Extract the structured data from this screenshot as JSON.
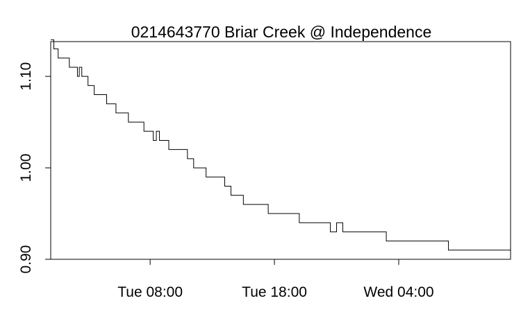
{
  "chart_data": {
    "type": "line",
    "title": "0214643770 Briar Creek @ Independence",
    "xlabel": "",
    "ylabel": "",
    "ylim": [
      0.9,
      1.138
    ],
    "grid": false,
    "legend": "none",
    "line_color": "#000000",
    "x_ticks": [
      "Tue 08:00",
      "Tue 18:00",
      "Wed 04:00"
    ],
    "y_ticks": [
      "0.90",
      "1.00",
      "1.10"
    ],
    "x_tick_hours": [
      8,
      18,
      28
    ],
    "x_range_hours": [
      0,
      37
    ],
    "series": [
      {
        "name": "",
        "x": [
          0,
          0.25,
          0.5,
          0.6,
          0.75,
          1,
          1.25,
          1.5,
          2,
          2.15,
          2.3,
          2.5,
          2.75,
          3,
          3.25,
          3.5,
          4,
          4.25,
          4.5,
          4.75,
          5,
          5.25,
          5.5,
          5.75,
          6,
          6.25,
          6.5,
          7,
          7.25,
          7.5,
          8,
          8.25,
          8.5,
          8.75,
          9,
          9.25,
          9.5,
          10,
          10.25,
          10.5,
          11,
          11.25,
          11.5,
          12,
          12.25,
          12.5,
          13,
          13.5,
          14,
          14.5,
          15,
          15.25,
          15.5,
          16,
          16.5,
          17,
          17.5,
          18,
          18.5,
          19,
          19.5,
          20,
          20.5,
          21,
          21.5,
          22,
          22.5,
          23,
          23.5,
          24,
          24.5,
          25,
          25.5,
          26,
          26.5,
          27,
          27.5,
          28,
          28.5,
          29,
          29.5,
          30,
          30.5,
          31,
          31.5,
          32,
          32.5,
          33,
          33.5,
          34,
          34.5,
          35,
          35.5,
          36,
          36.5,
          37
        ],
        "y": [
          1.14,
          1.13,
          1.13,
          1.12,
          1.12,
          1.12,
          1.12,
          1.11,
          1.11,
          1.1,
          1.11,
          1.1,
          1.1,
          1.09,
          1.09,
          1.08,
          1.08,
          1.08,
          1.07,
          1.07,
          1.07,
          1.06,
          1.06,
          1.06,
          1.06,
          1.05,
          1.05,
          1.05,
          1.05,
          1.04,
          1.04,
          1.03,
          1.04,
          1.03,
          1.03,
          1.03,
          1.02,
          1.02,
          1.02,
          1.02,
          1.01,
          1.01,
          1.0,
          1.0,
          1.0,
          0.99,
          0.99,
          0.99,
          0.98,
          0.97,
          0.97,
          0.97,
          0.96,
          0.96,
          0.96,
          0.96,
          0.95,
          0.95,
          0.95,
          0.95,
          0.95,
          0.94,
          0.94,
          0.94,
          0.94,
          0.94,
          0.93,
          0.94,
          0.93,
          0.93,
          0.93,
          0.93,
          0.93,
          0.93,
          0.93,
          0.92,
          0.92,
          0.92,
          0.92,
          0.92,
          0.92,
          0.92,
          0.92,
          0.92,
          0.92,
          0.91,
          0.91,
          0.91,
          0.91,
          0.91,
          0.91,
          0.91,
          0.91,
          0.91,
          0.91,
          0.9
        ]
      }
    ]
  }
}
